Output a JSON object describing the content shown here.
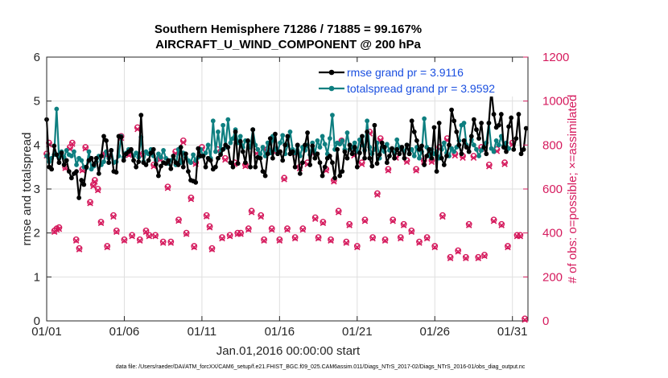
{
  "chart_data": {
    "type": "line",
    "title_line1": "Southern Hemisphere 71286 / 71885 = 99.167%",
    "title_line2": "AIRCRAFT_U_WIND_COMPONENT @ 200 hPa",
    "xlabel": "Jan.01,2016 00:00:00 start",
    "ylabel_left": "rmse and totalspread",
    "ylabel_right": "# of obs: o=possible; ×=assimilated",
    "x_tick_labels": [
      "01/01",
      "01/06",
      "01/11",
      "01/16",
      "01/21",
      "01/26",
      "01/31"
    ],
    "x_ticks": [
      1,
      6,
      11,
      16,
      21,
      26,
      31
    ],
    "xlim": [
      1,
      32
    ],
    "ylim_left": [
      0,
      6
    ],
    "yticks_left": [
      0,
      1,
      2,
      3,
      4,
      5,
      6
    ],
    "ylim_right": [
      0,
      1200
    ],
    "yticks_right": [
      0,
      200,
      400,
      600,
      800,
      1000,
      1200
    ],
    "grid": true,
    "legend_position": "top-right",
    "colors": {
      "rmse": "#000000",
      "spread": "#0e7f80",
      "obs": "#d51a5d",
      "legend_text": "#1a4fe0"
    },
    "series": [
      {
        "name": "rmse grand pr = 3.9116",
        "key": "rmse",
        "values": [
          4.58,
          3.5,
          3.45,
          3.98,
          3.78,
          3.6,
          3.82,
          3.55,
          3.65,
          3.4,
          3.25,
          3.35,
          3.4,
          2.8,
          3.2,
          3.1,
          3.5,
          3.65,
          3.7,
          3.55,
          3.7,
          3.35,
          3.75,
          4.2,
          4.1,
          3.6,
          3.88,
          3.4,
          3.38,
          4.2,
          4.18,
          3.65,
          3.8,
          3.85,
          3.9,
          3.65,
          3.5,
          3.62,
          4.68,
          3.6,
          3.55,
          3.65,
          3.82,
          3.9,
          3.56,
          3.3,
          3.52,
          3.6,
          3.58,
          3.65,
          3.46,
          3.75,
          3.6,
          3.55,
          3.95,
          3.5,
          3.8,
          3.4,
          3.2,
          3.18,
          3.15,
          3.92,
          3.75,
          3.75,
          3.5,
          3.7,
          3.65,
          3.45,
          3.5,
          3.7,
          3.78,
          3.9,
          4.0,
          3.95,
          3.6,
          3.5,
          4.3,
          3.58,
          4.08,
          3.85,
          3.6,
          4.1,
          3.5,
          4.35,
          3.5,
          3.72,
          3.7,
          3.4,
          3.3,
          3.8,
          4.15,
          3.7,
          4.25,
          3.8,
          3.85,
          3.65,
          4.0,
          4.2,
          3.8,
          3.85,
          3.5,
          4.0,
          3.35,
          3.6,
          4.0,
          4.28,
          3.55,
          3.98,
          3.7,
          3.8,
          3.6,
          3.3,
          3.5,
          3.7,
          3.75,
          3.6,
          3.25,
          3.9,
          3.3,
          3.4,
          3.85,
          3.7,
          4.0,
          3.8,
          3.95,
          3.5,
          3.82,
          4.2,
          3.7,
          4.3,
          3.7,
          3.52,
          4.45,
          3.58,
          3.78,
          4.05,
          3.95,
          3.6,
          3.75,
          3.92,
          3.7,
          3.9,
          3.8,
          3.95,
          3.7,
          4.0,
          3.8,
          4.55,
          4.3,
          4.1,
          3.9,
          3.98,
          3.55,
          3.75,
          3.9,
          3.7,
          4.4,
          3.4,
          4.5,
          3.7,
          3.55,
          3.75,
          4.0,
          4.8,
          4.55,
          4.3,
          4.0,
          3.8,
          4.1,
          3.95,
          3.85,
          4.2,
          4.58,
          4.35,
          4.15,
          4.5,
          3.95,
          3.8,
          4.5,
          5.25,
          4.7,
          4.4,
          4.45,
          4.7,
          3.95,
          3.85,
          4.42,
          4.62,
          3.9,
          4.15,
          4.7,
          3.8,
          3.9,
          4.38
        ],
        "start_day": 1.0,
        "step_days": 0.16
      },
      {
        "name": "totalspread grand pr = 3.9592",
        "key": "spread",
        "values": [
          3.75,
          3.62,
          3.7,
          3.78,
          4.82,
          3.7,
          3.85,
          3.72,
          3.88,
          3.78,
          3.75,
          3.85,
          3.55,
          3.7,
          3.65,
          3.5,
          3.48,
          3.85,
          3.45,
          3.52,
          3.62,
          3.75,
          3.55,
          3.62,
          3.85,
          3.7,
          3.88,
          3.6,
          3.62,
          3.75,
          4.2,
          3.72,
          3.82,
          3.9,
          3.88,
          3.75,
          3.82,
          3.72,
          4.18,
          3.62,
          3.85,
          3.8,
          3.9,
          3.75,
          3.65,
          3.8,
          3.72,
          3.88,
          3.7,
          3.58,
          3.65,
          3.75,
          3.55,
          3.9,
          3.6,
          3.82,
          3.72,
          3.65,
          3.6,
          3.78,
          3.65,
          3.72,
          3.9,
          3.75,
          3.82,
          4.0,
          3.7,
          4.55,
          3.85,
          4.3,
          3.82,
          4.45,
          3.95,
          4.58,
          4.05,
          4.15,
          4.35,
          4.05,
          4.2,
          3.95,
          4.1,
          4.08,
          3.95,
          4.35,
          4.0,
          3.9,
          3.8,
          3.95,
          3.75,
          4.05,
          3.82,
          4.2,
          3.9,
          3.85,
          4.05,
          4.22,
          3.8,
          4.0,
          4.3,
          3.9,
          3.82,
          3.98,
          3.75,
          3.95,
          3.88,
          4.0,
          3.78,
          4.05,
          3.82,
          4.1,
          3.95,
          4.2,
          4.02,
          3.8,
          4.15,
          4.68,
          3.9,
          4.05,
          4.02,
          4.1,
          3.9,
          4.28,
          3.9,
          3.95,
          4.05,
          3.85,
          4.12,
          4.0,
          3.88,
          4.55,
          3.95,
          3.8,
          3.9,
          4.05,
          3.7,
          3.95,
          3.85,
          4.02,
          3.88,
          3.92,
          3.8,
          4.12,
          3.95,
          3.9,
          3.85,
          4.0,
          3.8,
          3.9,
          3.75,
          3.95,
          3.7,
          3.85,
          4.6,
          3.95,
          3.75,
          3.9,
          3.8,
          3.85,
          3.7,
          3.9,
          4.05,
          3.82,
          3.75,
          3.92,
          3.85,
          3.95,
          4.1,
          4.45,
          4.5,
          4.0,
          3.85,
          4.12,
          4.0,
          3.9,
          3.75,
          3.88,
          3.95,
          4.05,
          4.5,
          3.92,
          3.85,
          4.1,
          4.0,
          4.2,
          3.98,
          4.05,
          3.92
        ],
        "start_day": 1.0,
        "step_days": 0.16
      }
    ],
    "obs_possible": [
      [
        1.0,
        760
      ],
      [
        1.15,
        810
      ],
      [
        1.5,
        410
      ],
      [
        1.65,
        420
      ],
      [
        1.8,
        425
      ],
      [
        2.2,
        700
      ],
      [
        2.5,
        790
      ],
      [
        2.65,
        810
      ],
      [
        2.9,
        370
      ],
      [
        3.1,
        330
      ],
      [
        3.3,
        690
      ],
      [
        3.5,
        790
      ],
      [
        3.8,
        540
      ],
      [
        4.0,
        620
      ],
      [
        4.1,
        640
      ],
      [
        4.3,
        600
      ],
      [
        4.5,
        450
      ],
      [
        4.8,
        760
      ],
      [
        4.9,
        340
      ],
      [
        5.05,
        760
      ],
      [
        5.3,
        480
      ],
      [
        5.5,
        410
      ],
      [
        5.8,
        840
      ],
      [
        6.0,
        370
      ],
      [
        6.3,
        760
      ],
      [
        6.5,
        390
      ],
      [
        6.85,
        880
      ],
      [
        7.0,
        370
      ],
      [
        7.2,
        760
      ],
      [
        7.4,
        410
      ],
      [
        7.6,
        390
      ],
      [
        7.9,
        710
      ],
      [
        8.0,
        390
      ],
      [
        8.3,
        740
      ],
      [
        8.5,
        360
      ],
      [
        8.8,
        610
      ],
      [
        9.0,
        360
      ],
      [
        9.3,
        770
      ],
      [
        9.5,
        460
      ],
      [
        9.8,
        820
      ],
      [
        10.0,
        400
      ],
      [
        10.3,
        560
      ],
      [
        10.5,
        340
      ],
      [
        10.6,
        720
      ],
      [
        11.0,
        790
      ],
      [
        11.3,
        480
      ],
      [
        11.5,
        430
      ],
      [
        11.65,
        330
      ],
      [
        12.0,
        780
      ],
      [
        12.3,
        380
      ],
      [
        12.5,
        740
      ],
      [
        12.8,
        390
      ],
      [
        13.1,
        720
      ],
      [
        13.3,
        400
      ],
      [
        13.5,
        400
      ],
      [
        13.8,
        710
      ],
      [
        14.0,
        420
      ],
      [
        14.2,
        500
      ],
      [
        14.5,
        770
      ],
      [
        14.8,
        480
      ],
      [
        15.0,
        370
      ],
      [
        15.2,
        780
      ],
      [
        15.5,
        420
      ],
      [
        15.8,
        780
      ],
      [
        16.0,
        370
      ],
      [
        16.3,
        650
      ],
      [
        16.5,
        420
      ],
      [
        16.8,
        770
      ],
      [
        17.0,
        380
      ],
      [
        17.3,
        700
      ],
      [
        17.5,
        420
      ],
      [
        17.8,
        720
      ],
      [
        18.1,
        770
      ],
      [
        18.3,
        470
      ],
      [
        18.5,
        380
      ],
      [
        18.8,
        450
      ],
      [
        19.0,
        690
      ],
      [
        19.3,
        370
      ],
      [
        19.5,
        640
      ],
      [
        19.8,
        500
      ],
      [
        20.0,
        820
      ],
      [
        20.3,
        360
      ],
      [
        20.5,
        440
      ],
      [
        20.8,
        760
      ],
      [
        21.0,
        340
      ],
      [
        21.3,
        720
      ],
      [
        21.5,
        460
      ],
      [
        21.8,
        860
      ],
      [
        22.0,
        380
      ],
      [
        22.3,
        580
      ],
      [
        22.5,
        830
      ],
      [
        22.8,
        370
      ],
      [
        23.0,
        690
      ],
      [
        23.3,
        460
      ],
      [
        23.5,
        750
      ],
      [
        23.8,
        380
      ],
      [
        24.0,
        440
      ],
      [
        24.2,
        730
      ],
      [
        24.5,
        410
      ],
      [
        24.8,
        690
      ],
      [
        25.0,
        360
      ],
      [
        25.3,
        730
      ],
      [
        25.5,
        380
      ],
      [
        25.8,
        730
      ],
      [
        26.0,
        340
      ],
      [
        26.3,
        790
      ],
      [
        26.5,
        480
      ],
      [
        26.8,
        830
      ],
      [
        27.0,
        290
      ],
      [
        27.3,
        760
      ],
      [
        27.5,
        320
      ],
      [
        27.8,
        750
      ],
      [
        28.0,
        290
      ],
      [
        28.2,
        440
      ],
      [
        28.5,
        750
      ],
      [
        28.8,
        290
      ],
      [
        29.0,
        790
      ],
      [
        29.2,
        300
      ],
      [
        29.5,
        710
      ],
      [
        29.8,
        460
      ],
      [
        30.0,
        780
      ],
      [
        30.3,
        440
      ],
      [
        30.5,
        720
      ],
      [
        30.7,
        340
      ],
      [
        31.0,
        810
      ],
      [
        31.3,
        390
      ],
      [
        31.5,
        390
      ],
      [
        31.8,
        10
      ]
    ],
    "obs_assimilated": [
      [
        1.0,
        752
      ],
      [
        1.15,
        802
      ],
      [
        1.5,
        405
      ],
      [
        1.65,
        415
      ],
      [
        1.8,
        418
      ],
      [
        2.2,
        695
      ],
      [
        2.5,
        782
      ],
      [
        2.65,
        805
      ],
      [
        2.9,
        365
      ],
      [
        3.1,
        325
      ],
      [
        3.3,
        684
      ],
      [
        3.5,
        784
      ],
      [
        3.8,
        535
      ],
      [
        4.0,
        613
      ],
      [
        4.1,
        633
      ],
      [
        4.3,
        594
      ],
      [
        4.5,
        445
      ],
      [
        4.8,
        753
      ],
      [
        4.9,
        335
      ],
      [
        5.05,
        754
      ],
      [
        5.3,
        474
      ],
      [
        5.5,
        405
      ],
      [
        5.8,
        832
      ],
      [
        6.0,
        365
      ],
      [
        6.3,
        754
      ],
      [
        6.5,
        385
      ],
      [
        6.85,
        872
      ],
      [
        7.0,
        365
      ],
      [
        7.2,
        754
      ],
      [
        7.4,
        405
      ],
      [
        7.6,
        385
      ],
      [
        7.9,
        703
      ],
      [
        8.0,
        385
      ],
      [
        8.3,
        733
      ],
      [
        8.5,
        355
      ],
      [
        8.8,
        604
      ],
      [
        9.0,
        355
      ],
      [
        9.3,
        762
      ],
      [
        9.5,
        455
      ],
      [
        9.8,
        812
      ],
      [
        10.0,
        395
      ],
      [
        10.3,
        554
      ],
      [
        10.5,
        335
      ],
      [
        10.6,
        714
      ],
      [
        11.0,
        782
      ],
      [
        11.3,
        475
      ],
      [
        11.5,
        425
      ],
      [
        11.65,
        325
      ],
      [
        12.0,
        772
      ],
      [
        12.3,
        375
      ],
      [
        12.5,
        733
      ],
      [
        12.8,
        385
      ],
      [
        13.1,
        713
      ],
      [
        13.3,
        395
      ],
      [
        13.5,
        395
      ],
      [
        13.8,
        704
      ],
      [
        14.0,
        415
      ],
      [
        14.2,
        494
      ],
      [
        14.5,
        762
      ],
      [
        14.8,
        474
      ],
      [
        15.0,
        365
      ],
      [
        15.2,
        772
      ],
      [
        15.5,
        415
      ],
      [
        15.8,
        772
      ],
      [
        16.0,
        365
      ],
      [
        16.3,
        644
      ],
      [
        16.5,
        415
      ],
      [
        16.8,
        762
      ],
      [
        17.0,
        375
      ],
      [
        17.3,
        694
      ],
      [
        17.5,
        415
      ],
      [
        17.8,
        713
      ],
      [
        18.1,
        762
      ],
      [
        18.3,
        464
      ],
      [
        18.5,
        375
      ],
      [
        18.8,
        445
      ],
      [
        19.0,
        684
      ],
      [
        19.3,
        365
      ],
      [
        19.5,
        634
      ],
      [
        19.8,
        494
      ],
      [
        20.0,
        812
      ],
      [
        20.3,
        355
      ],
      [
        20.5,
        435
      ],
      [
        20.8,
        752
      ],
      [
        21.0,
        335
      ],
      [
        21.3,
        713
      ],
      [
        21.5,
        454
      ],
      [
        21.8,
        852
      ],
      [
        22.0,
        375
      ],
      [
        22.3,
        574
      ],
      [
        22.5,
        822
      ],
      [
        22.8,
        365
      ],
      [
        23.0,
        684
      ],
      [
        23.3,
        454
      ],
      [
        23.5,
        742
      ],
      [
        23.8,
        375
      ],
      [
        24.0,
        435
      ],
      [
        24.2,
        723
      ],
      [
        24.5,
        405
      ],
      [
        24.8,
        684
      ],
      [
        25.0,
        355
      ],
      [
        25.3,
        723
      ],
      [
        25.5,
        375
      ],
      [
        25.8,
        723
      ],
      [
        26.0,
        335
      ],
      [
        26.3,
        782
      ],
      [
        26.5,
        474
      ],
      [
        26.8,
        822
      ],
      [
        27.0,
        285
      ],
      [
        27.3,
        752
      ],
      [
        27.5,
        315
      ],
      [
        27.8,
        742
      ],
      [
        28.0,
        285
      ],
      [
        28.2,
        435
      ],
      [
        28.5,
        742
      ],
      [
        28.8,
        285
      ],
      [
        29.0,
        782
      ],
      [
        29.2,
        295
      ],
      [
        29.5,
        703
      ],
      [
        29.8,
        454
      ],
      [
        30.0,
        772
      ],
      [
        30.3,
        435
      ],
      [
        30.5,
        713
      ],
      [
        30.7,
        335
      ],
      [
        31.0,
        802
      ],
      [
        31.3,
        385
      ],
      [
        31.5,
        385
      ],
      [
        31.8,
        5
      ]
    ]
  },
  "footer": "data file: /Users/raeder/DAI/ATM_forcXX/CAM6_setup/f.e21.FHIST_BGC.f09_025.CAM6assim.011/Diags_NTrS_2017-02/Diags_NTrS_2016-01/obs_diag_output.nc"
}
